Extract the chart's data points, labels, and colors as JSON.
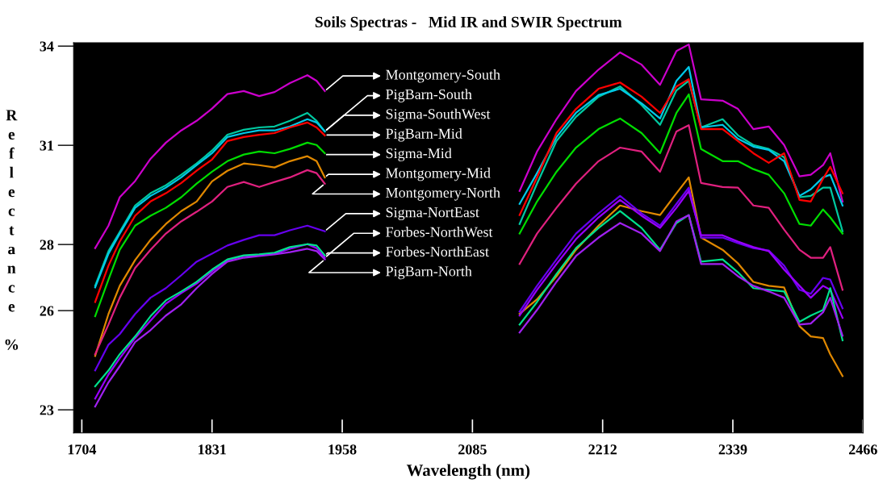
{
  "chart_data": {
    "type": "line",
    "title": "Soils Spectras -   Mid IR and SWIR Spectrum",
    "xlabel": "Wavelength (nm)",
    "ylabel": "Reflectance %",
    "x": [
      1717,
      1730,
      1741,
      1756,
      1771,
      1786,
      1801,
      1816,
      1831,
      1846,
      1862,
      1877,
      1892,
      1907,
      1924,
      1933,
      1941,
      2030,
      2131,
      2148,
      2167,
      2186,
      2208,
      2229,
      2250,
      2268,
      2284,
      2296,
      2308,
      2329,
      2344,
      2359,
      2374,
      2389,
      2404,
      2415,
      2427,
      2434,
      2446
    ],
    "xlim": [
      1696,
      2466
    ],
    "xticks": [
      1704,
      1831,
      1958,
      2085,
      2212,
      2339,
      2466
    ],
    "ylim": [
      22.3,
      34.1
    ],
    "yticks": [
      23,
      26,
      28,
      31,
      34
    ],
    "grid": false,
    "legend": false,
    "marker": "none",
    "line_style": "solid",
    "series": [
      {
        "name": "Montgomery-South",
        "color": "#cc00cc",
        "values": [
          27.89,
          28.57,
          29.43,
          29.92,
          30.59,
          31.08,
          31.45,
          31.74,
          32.11,
          32.55,
          32.64,
          32.49,
          32.61,
          32.88,
          33.12,
          32.95,
          32.64,
          null,
          29.62,
          30.81,
          31.79,
          32.64,
          33.29,
          33.81,
          33.44,
          32.83,
          33.85,
          34.05,
          32.39,
          32.35,
          32.1,
          31.49,
          31.57,
          31.01,
          30.06,
          30.11,
          30.4,
          30.76,
          29.3
        ]
      },
      {
        "name": "PigBarn-South",
        "color": "#00c8a0",
        "values": [
          26.75,
          27.8,
          28.38,
          29.18,
          29.55,
          29.79,
          30.11,
          30.45,
          30.84,
          31.32,
          31.47,
          31.54,
          31.57,
          31.74,
          31.98,
          31.74,
          31.42,
          null,
          28.62,
          29.84,
          31.13,
          31.86,
          32.47,
          32.78,
          32.22,
          31.62,
          32.66,
          32.95,
          31.54,
          31.79,
          31.3,
          31.01,
          30.89,
          30.64,
          29.43,
          29.47,
          29.72,
          29.72,
          28.4
        ]
      },
      {
        "name": "Sigma-SouthWest",
        "color": "#00c8e8",
        "values": [
          26.7,
          27.72,
          28.33,
          29.11,
          29.47,
          29.72,
          30.03,
          30.4,
          30.76,
          31.25,
          31.37,
          31.45,
          31.45,
          31.57,
          31.79,
          31.69,
          31.42,
          null,
          29.23,
          30.16,
          31.25,
          31.98,
          32.52,
          32.71,
          32.27,
          31.81,
          32.95,
          33.37,
          31.54,
          31.62,
          31.2,
          30.96,
          30.86,
          30.52,
          29.47,
          29.67,
          30.03,
          30.11,
          29.18
        ]
      },
      {
        "name": "PigBarn-Mid",
        "color": "#ff0000",
        "values": [
          26.26,
          27.36,
          28.09,
          28.87,
          29.3,
          29.55,
          29.86,
          30.23,
          30.57,
          31.13,
          31.25,
          31.32,
          31.37,
          31.54,
          31.69,
          31.54,
          31.3,
          null,
          28.89,
          30.03,
          31.37,
          32.1,
          32.71,
          32.9,
          32.47,
          31.98,
          32.78,
          33.0,
          31.49,
          31.49,
          31.13,
          30.76,
          30.47,
          30.76,
          29.35,
          29.3,
          29.99,
          30.35,
          29.55
        ]
      },
      {
        "name": "Sigma-Mid",
        "color": "#00dd00",
        "values": [
          25.83,
          26.94,
          27.84,
          28.57,
          28.87,
          29.11,
          29.43,
          29.84,
          30.2,
          30.52,
          30.72,
          30.81,
          30.76,
          30.89,
          31.08,
          31.01,
          30.76,
          null,
          28.33,
          29.3,
          30.2,
          30.93,
          31.49,
          31.81,
          31.37,
          30.76,
          31.98,
          32.54,
          30.89,
          30.52,
          30.52,
          30.28,
          30.11,
          29.55,
          28.62,
          28.57,
          29.06,
          28.82,
          28.33
        ]
      },
      {
        "name": "Montgomery-Mid",
        "color": "#e08800",
        "values": [
          24.63,
          25.9,
          26.75,
          27.53,
          28.14,
          28.62,
          29.01,
          29.3,
          29.91,
          30.23,
          30.45,
          30.4,
          30.33,
          30.52,
          30.67,
          30.52,
          30.03,
          null,
          25.9,
          26.34,
          27.04,
          27.84,
          28.57,
          29.18,
          29.01,
          28.89,
          29.55,
          30.03,
          28.21,
          27.84,
          27.43,
          26.87,
          26.75,
          26.7,
          25.53,
          25.22,
          25.17,
          24.68,
          24.02
        ]
      },
      {
        "name": "Montgomery-North",
        "color": "#e0207f",
        "values": [
          24.68,
          25.58,
          26.39,
          27.29,
          27.84,
          28.33,
          28.7,
          28.99,
          29.3,
          29.74,
          29.89,
          29.74,
          29.89,
          30.03,
          30.25,
          30.16,
          29.84,
          null,
          27.41,
          28.33,
          29.11,
          29.84,
          30.52,
          30.93,
          30.81,
          30.2,
          31.42,
          31.61,
          29.86,
          29.74,
          29.72,
          29.18,
          29.11,
          28.45,
          27.84,
          27.6,
          27.6,
          27.92,
          26.63
        ]
      },
      {
        "name": "Sigma-NortEast",
        "color": "#6600ee",
        "values": [
          24.19,
          24.97,
          25.29,
          25.9,
          26.39,
          26.68,
          27.07,
          27.48,
          27.72,
          27.97,
          28.14,
          28.28,
          28.28,
          28.43,
          28.57,
          28.48,
          28.4,
          null,
          25.97,
          26.75,
          27.55,
          28.33,
          28.94,
          29.47,
          28.94,
          28.57,
          29.23,
          29.72,
          28.21,
          28.21,
          28.04,
          27.89,
          27.82,
          27.36,
          26.63,
          26.51,
          26.99,
          26.94,
          26.07
        ]
      },
      {
        "name": "Forbes-NorthWest",
        "color": "#9900ff",
        "values": [
          23.34,
          24.07,
          24.56,
          25.17,
          25.7,
          26.21,
          26.53,
          26.82,
          27.19,
          27.53,
          27.65,
          27.67,
          27.72,
          27.87,
          28.01,
          27.89,
          27.6,
          null,
          25.85,
          26.63,
          27.41,
          28.16,
          28.82,
          29.35,
          28.87,
          28.5,
          29.11,
          29.62,
          28.28,
          28.28,
          28.09,
          27.92,
          27.8,
          27.24,
          26.75,
          26.39,
          26.75,
          26.63,
          25.78
        ]
      },
      {
        "name": "Forbes-NorthEast",
        "color": "#00e08c",
        "values": [
          23.71,
          24.19,
          24.68,
          25.22,
          25.83,
          26.31,
          26.58,
          26.87,
          27.24,
          27.55,
          27.67,
          27.7,
          27.75,
          27.92,
          28.01,
          27.97,
          27.67,
          null,
          25.58,
          26.26,
          27.11,
          27.89,
          28.5,
          29.01,
          28.5,
          27.84,
          28.65,
          28.89,
          27.48,
          27.55,
          27.16,
          26.68,
          26.63,
          26.58,
          25.66,
          25.85,
          26.02,
          26.68,
          25.1
        ]
      },
      {
        "name": "PigBarn-North",
        "color": "#a020f0",
        "values": [
          23.1,
          23.83,
          24.32,
          25.05,
          25.41,
          25.85,
          26.19,
          26.68,
          27.11,
          27.48,
          27.6,
          27.65,
          27.7,
          27.77,
          27.87,
          27.8,
          27.55,
          null,
          25.34,
          26.02,
          26.87,
          27.65,
          28.21,
          28.65,
          28.33,
          27.8,
          28.7,
          28.89,
          27.41,
          27.41,
          27.04,
          26.75,
          26.58,
          26.39,
          25.58,
          25.61,
          25.95,
          26.39,
          25.24
        ]
      }
    ]
  }
}
